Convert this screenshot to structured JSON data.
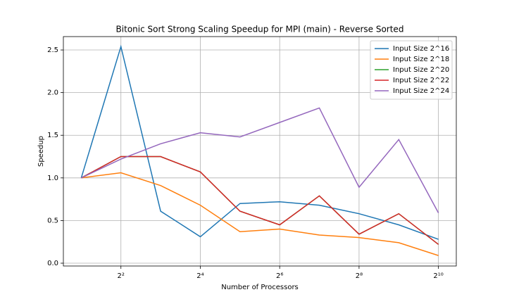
{
  "chart_data": {
    "type": "line",
    "title": "Bitonic Sort Strong Scaling Speedup for MPI (main) - Reverse Sorted",
    "x_label": "Number of Processors",
    "y_label": "Speedup",
    "x": [
      2,
      4,
      8,
      16,
      32,
      64,
      128,
      256,
      512,
      1024
    ],
    "x_log_base": 2,
    "series": [
      {
        "name": "Input Size 2^16",
        "color": "#1f77b4",
        "values": [
          1.0,
          2.54,
          0.61,
          0.31,
          0.7,
          0.72,
          0.68,
          0.58,
          0.45,
          0.28
        ]
      },
      {
        "name": "Input Size 2^18",
        "color": "#ff7f0e",
        "values": [
          1.0,
          1.06,
          0.91,
          0.68,
          0.37,
          0.4,
          0.33,
          0.3,
          0.24,
          0.09
        ]
      },
      {
        "name": "Input Size 2^20",
        "color": "#2ca02c",
        "values": [
          1.0,
          1.25,
          1.25,
          1.07,
          0.61,
          0.45,
          0.79,
          0.34,
          0.58,
          0.22
        ]
      },
      {
        "name": "Input Size 2^22",
        "color": "#d62728",
        "values": [
          1.0,
          1.25,
          1.25,
          1.07,
          0.61,
          0.45,
          0.79,
          0.34,
          0.58,
          0.22
        ]
      },
      {
        "name": "Input Size 2^24",
        "color": "#9467bd",
        "values": [
          1.0,
          1.22,
          1.4,
          1.53,
          1.48,
          1.65,
          1.82,
          0.89,
          1.45,
          0.59
        ]
      }
    ],
    "xlim": [
      1.464,
      1399
    ],
    "xticks": [
      {
        "value": 4,
        "label": "2²"
      },
      {
        "value": 16,
        "label": "2⁴"
      },
      {
        "value": 64,
        "label": "2⁶"
      },
      {
        "value": 256,
        "label": "2⁸"
      },
      {
        "value": 1024,
        "label": "2¹⁰"
      }
    ],
    "ylim": [
      -0.033,
      2.657
    ],
    "yticks": [
      {
        "value": 0,
        "label": "0.0"
      },
      0.5,
      {
        "value": 1,
        "label": "1.0"
      },
      1.5,
      {
        "value": 2,
        "label": "2.0"
      },
      2.5
    ],
    "grid": true,
    "legend": "upper right"
  }
}
